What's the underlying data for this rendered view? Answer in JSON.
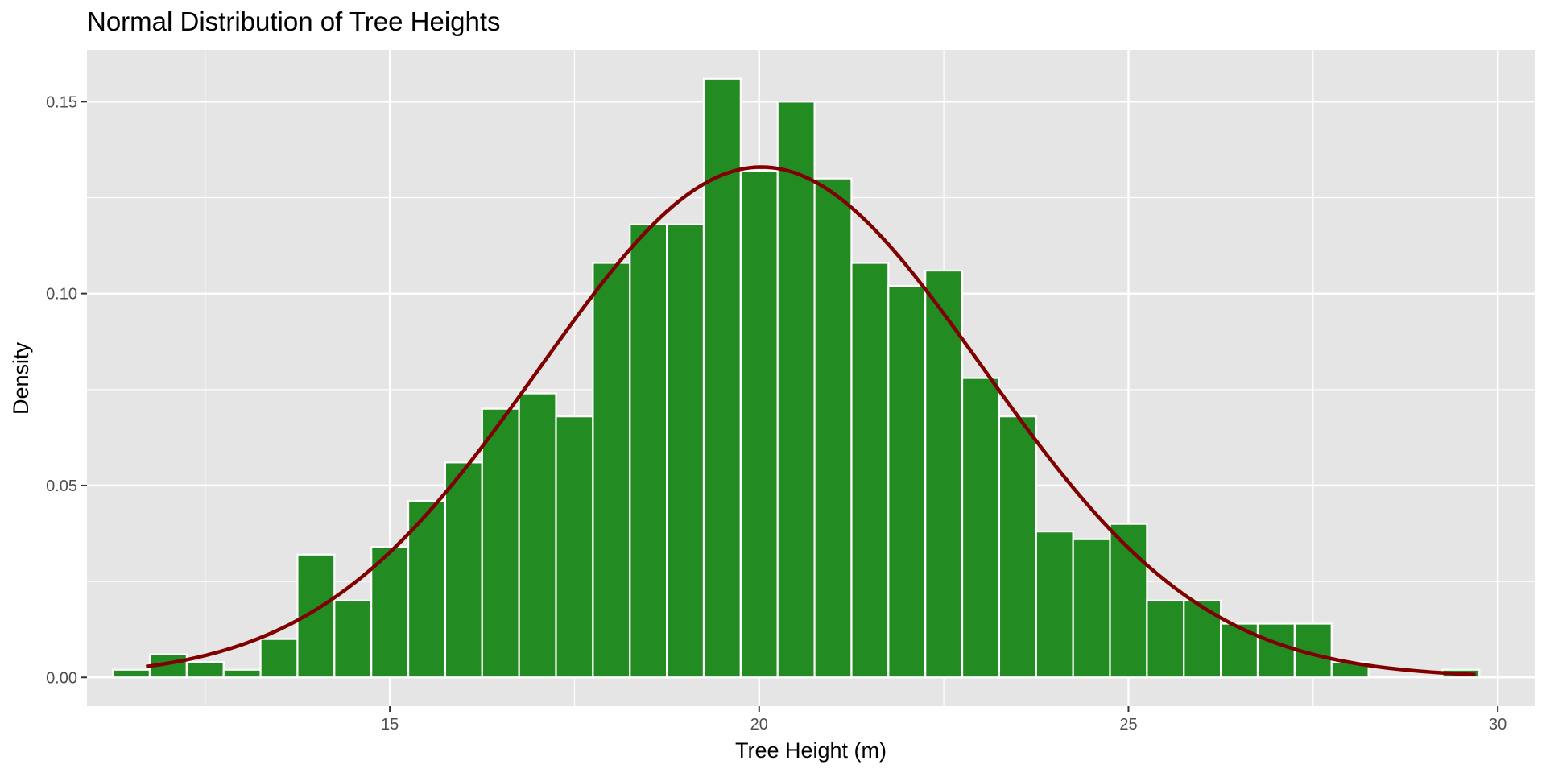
{
  "chart_data": {
    "type": "bar",
    "subtype": "histogram-with-density-curve",
    "title": "Normal Distribution of Tree Heights",
    "xlabel": "Tree Height (m)",
    "ylabel": "Density",
    "xlim": [
      10.9,
      30.5
    ],
    "ylim": [
      -0.0075,
      0.1635
    ],
    "x_ticks": [
      15,
      20,
      25,
      30
    ],
    "x_tick_labels": [
      "15",
      "20",
      "25",
      "30"
    ],
    "y_ticks": [
      0.0,
      0.05,
      0.1,
      0.15
    ],
    "y_tick_labels": [
      "0.00",
      "0.05",
      "0.10",
      "0.15"
    ],
    "grid": true,
    "bin_width": 0.5,
    "bins": [
      {
        "start": 11.25,
        "density": 0.002
      },
      {
        "start": 11.75,
        "density": 0.006
      },
      {
        "start": 12.25,
        "density": 0.004
      },
      {
        "start": 12.75,
        "density": 0.002
      },
      {
        "start": 13.25,
        "density": 0.01
      },
      {
        "start": 13.75,
        "density": 0.032
      },
      {
        "start": 14.25,
        "density": 0.02
      },
      {
        "start": 14.75,
        "density": 0.034
      },
      {
        "start": 15.25,
        "density": 0.046
      },
      {
        "start": 15.75,
        "density": 0.056
      },
      {
        "start": 16.25,
        "density": 0.07
      },
      {
        "start": 16.75,
        "density": 0.074
      },
      {
        "start": 17.25,
        "density": 0.068
      },
      {
        "start": 17.75,
        "density": 0.108
      },
      {
        "start": 18.25,
        "density": 0.118
      },
      {
        "start": 18.75,
        "density": 0.118
      },
      {
        "start": 19.25,
        "density": 0.156
      },
      {
        "start": 19.75,
        "density": 0.132
      },
      {
        "start": 20.25,
        "density": 0.15
      },
      {
        "start": 20.75,
        "density": 0.13
      },
      {
        "start": 21.25,
        "density": 0.108
      },
      {
        "start": 21.75,
        "density": 0.102
      },
      {
        "start": 22.25,
        "density": 0.106
      },
      {
        "start": 22.75,
        "density": 0.078
      },
      {
        "start": 23.25,
        "density": 0.068
      },
      {
        "start": 23.75,
        "density": 0.038
      },
      {
        "start": 24.25,
        "density": 0.036
      },
      {
        "start": 24.75,
        "density": 0.04
      },
      {
        "start": 25.25,
        "density": 0.02
      },
      {
        "start": 25.75,
        "density": 0.02
      },
      {
        "start": 26.25,
        "density": 0.014
      },
      {
        "start": 26.75,
        "density": 0.014
      },
      {
        "start": 27.25,
        "density": 0.014
      },
      {
        "start": 27.75,
        "density": 0.004
      },
      {
        "start": 28.25,
        "density": 0
      },
      {
        "start": 28.75,
        "density": 0
      },
      {
        "start": 29.25,
        "density": 0.002
      }
    ],
    "curve": {
      "kind": "normal-density",
      "mean": 20.03,
      "sd": 3.0,
      "x_range": [
        11.7,
        29.7
      ]
    },
    "colors": {
      "panel_background": "#e5e5e5",
      "grid": "#ffffff",
      "bar_fill": "#228b22",
      "bar_outline": "#ffffff",
      "curve": "#800000",
      "tick_text": "#4d4d4d",
      "tick_mark": "#333333",
      "title_text": "#000000"
    }
  }
}
